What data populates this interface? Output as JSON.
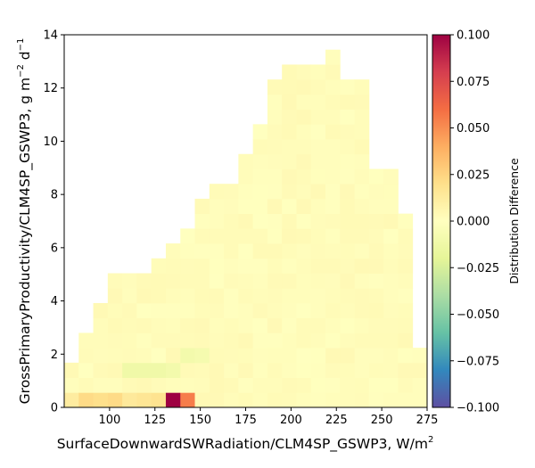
{
  "chart_data": {
    "type": "heatmap",
    "xlabel": "SurfaceDownwardSWRadiation/CLM4SP_GSWP3,  W/m",
    "xlabel_sup": "2",
    "ylabel_main": "GrossPrimaryProductivity/CLM4SP_GSWP3,  g m",
    "ylabel_sup1": "−2",
    "ylabel_mid": " d",
    "ylabel_sup2": "−1",
    "xlim": [
      75,
      275
    ],
    "ylim": [
      0,
      14
    ],
    "xticks": [
      100,
      125,
      150,
      175,
      200,
      225,
      250,
      275
    ],
    "yticks": [
      0,
      2,
      4,
      6,
      8,
      10,
      12,
      14
    ],
    "x_bin_width": 8,
    "y_bin_width": 0.56,
    "colorbar": {
      "label": "Distribution Difference",
      "vmin": -0.1,
      "vmax": 0.1,
      "ticks": [
        "0.100",
        "0.075",
        "0.050",
        "0.025",
        "0.000",
        "−0.025",
        "−0.050",
        "−0.075",
        "−0.100"
      ],
      "tick_values": [
        0.1,
        0.075,
        0.05,
        0.025,
        0,
        -0.025,
        -0.05,
        -0.075,
        -0.1
      ],
      "colormap": "Spectral_r"
    },
    "column_extents": [
      {
        "x0": 75,
        "rows": 3
      },
      {
        "x0": 83,
        "rows": 5
      },
      {
        "x0": 91,
        "rows": 7
      },
      {
        "x0": 99,
        "rows": 9
      },
      {
        "x0": 107,
        "rows": 9
      },
      {
        "x0": 115,
        "rows": 9
      },
      {
        "x0": 123,
        "rows": 10
      },
      {
        "x0": 131,
        "rows": 11
      },
      {
        "x0": 139,
        "rows": 12
      },
      {
        "x0": 147,
        "rows": 14
      },
      {
        "x0": 155,
        "rows": 15
      },
      {
        "x0": 163,
        "rows": 15
      },
      {
        "x0": 171,
        "rows": 17
      },
      {
        "x0": 179,
        "rows": 19
      },
      {
        "x0": 187,
        "rows": 22
      },
      {
        "x0": 195,
        "rows": 23
      },
      {
        "x0": 203,
        "rows": 23
      },
      {
        "x0": 211,
        "rows": 23
      },
      {
        "x0": 219,
        "rows": 24
      },
      {
        "x0": 227,
        "rows": 22
      },
      {
        "x0": 235,
        "rows": 22
      },
      {
        "x0": 243,
        "rows": 16
      },
      {
        "x0": 251,
        "rows": 16
      },
      {
        "x0": 259,
        "rows": 13
      },
      {
        "x0": 267,
        "rows": 4
      }
    ],
    "hot_cells": [
      {
        "x0": 131,
        "y0": 0,
        "value": 0.1
      },
      {
        "x0": 139,
        "y0": 0,
        "value": 0.055
      },
      {
        "x0": 83,
        "y0": 0,
        "value": 0.022
      },
      {
        "x0": 91,
        "y0": 0,
        "value": 0.02
      },
      {
        "x0": 99,
        "y0": 0,
        "value": 0.022
      },
      {
        "x0": 107,
        "y0": 0,
        "value": 0.014
      },
      {
        "x0": 115,
        "y0": 0,
        "value": 0.016
      },
      {
        "x0": 123,
        "y0": 0,
        "value": 0.018
      },
      {
        "x0": 75,
        "y0": 0,
        "value": 0.012
      },
      {
        "x0": 107,
        "y0": 1.12,
        "value": -0.012
      },
      {
        "x0": 115,
        "y0": 1.12,
        "value": -0.012
      },
      {
        "x0": 123,
        "y0": 1.12,
        "value": -0.012
      },
      {
        "x0": 131,
        "y0": 1.12,
        "value": -0.01
      },
      {
        "x0": 139,
        "y0": 1.68,
        "value": -0.01
      },
      {
        "x0": 147,
        "y0": 1.68,
        "value": -0.008
      }
    ],
    "background_value": 0.002
  }
}
